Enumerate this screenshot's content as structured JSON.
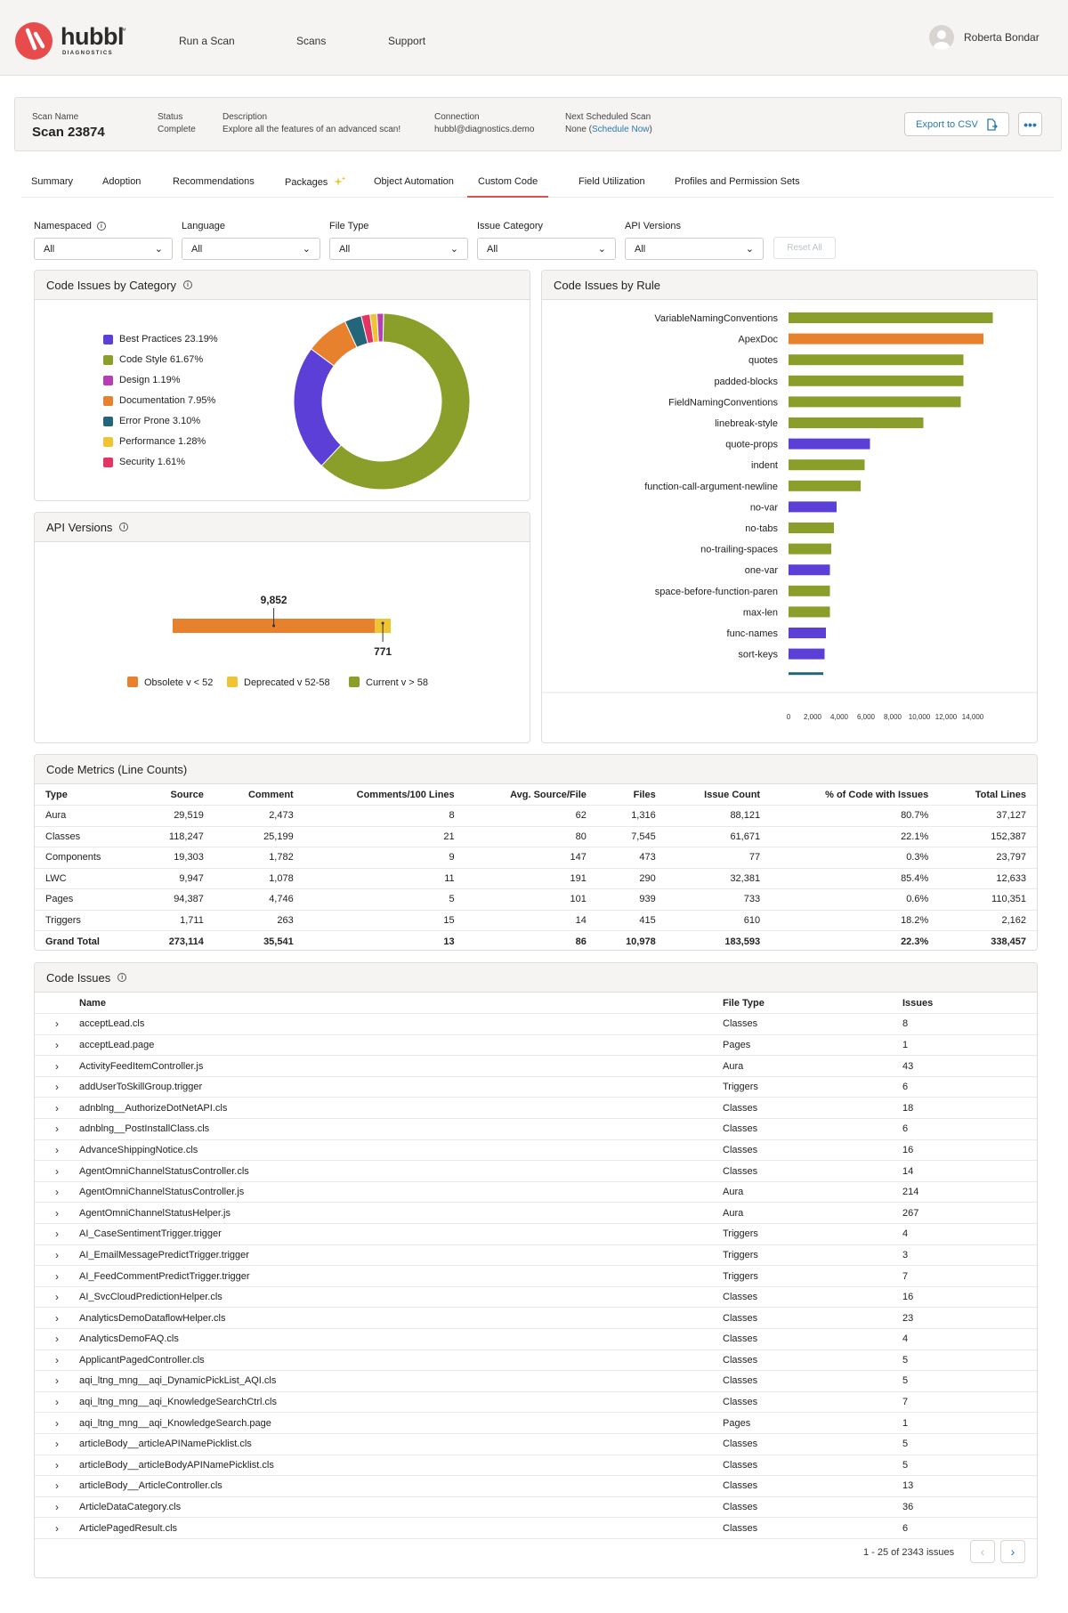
{
  "header": {
    "brand": "hubbl",
    "brand_tm": "™",
    "brand_sub": "DIAGNOSTICS",
    "nav": [
      "Run a Scan",
      "Scans",
      "Support"
    ],
    "user_name": "Roberta Bondar"
  },
  "scan": {
    "name_label": "Scan Name",
    "name": "Scan 23874",
    "status_label": "Status",
    "status": "Complete",
    "description_label": "Description",
    "description": "Explore all the features of an advanced scan!",
    "connection_label": "Connection",
    "connection": "hubbl@diagnostics.demo",
    "next_label": "Next Scheduled Scan",
    "next_none": "None (",
    "next_link": "Schedule Now",
    "next_close": ")",
    "export_label": "Export to CSV",
    "more_label": "•••"
  },
  "tabs": [
    "Summary",
    "Adoption",
    "Recommendations",
    "Packages",
    "Object Automation",
    "Custom Code",
    "Field Utilization",
    "Profiles and Permission Sets"
  ],
  "active_tab": "Custom Code",
  "filters": [
    {
      "label": "Namespaced",
      "value": "All"
    },
    {
      "label": "Language",
      "value": "All"
    },
    {
      "label": "File Type",
      "value": "All"
    },
    {
      "label": "Issue Category",
      "value": "All"
    },
    {
      "label": "API Versions",
      "value": "All"
    }
  ],
  "reset_label": "Reset All",
  "colors": {
    "best_practices": "#5b3fd6",
    "code_style": "#8a9e2a",
    "design": "#b43fb3",
    "documentation": "#e8812e",
    "error_prone": "#23667a",
    "performance": "#efc331",
    "security": "#e33463",
    "obsolete": "#e8812e",
    "deprecated": "#efc331",
    "current": "#8a9e2a"
  },
  "category_panel": {
    "title": "Code Issues by Category"
  },
  "api_panel": {
    "title": "API Versions"
  },
  "rule_panel": {
    "title": "Code Issues by Rule"
  },
  "chart_data": [
    {
      "type": "pie",
      "title": "Code Issues by Category",
      "labels": [
        "Best Practices 23.19%",
        "Code Style 61.67%",
        "Design 1.19%",
        "Documentation 7.95%",
        "Error Prone 3.10%",
        "Performance 1.28%",
        "Security 1.61%"
      ],
      "categories": [
        "Best Practices",
        "Code Style",
        "Design",
        "Documentation",
        "Error Prone",
        "Performance",
        "Security"
      ],
      "values": [
        23.19,
        61.67,
        1.19,
        7.95,
        3.1,
        1.28,
        1.61
      ],
      "color_keys": [
        "best_practices",
        "code_style",
        "design",
        "documentation",
        "error_prone",
        "performance",
        "security"
      ],
      "slice_order": [
        "Code Style",
        "Best Practices",
        "Documentation",
        "Error Prone",
        "Security",
        "Performance",
        "Design"
      ]
    },
    {
      "type": "bar",
      "title": "API Versions",
      "orientation": "horizontal-stacked",
      "series": [
        {
          "name": "Obsolete v < 52",
          "value": 9852,
          "label": "9,852",
          "color_key": "obsolete"
        },
        {
          "name": "Deprecated v 52-58",
          "value": 771,
          "label": "771",
          "color_key": "deprecated"
        },
        {
          "name": "Current v > 58",
          "value": 0,
          "color_key": "current"
        }
      ]
    },
    {
      "type": "bar",
      "title": "Code Issues by Rule",
      "orientation": "horizontal",
      "categories": [
        "VariableNamingConventions",
        "ApexDoc",
        "quotes",
        "padded-blocks",
        "FieldNamingConventions",
        "linebreak-style",
        "quote-props",
        "indent",
        "function-call-argument-newline",
        "no-var",
        "no-tabs",
        "no-trailing-spaces",
        "one-var",
        "space-before-function-paren",
        "max-len",
        "func-names",
        "sort-keys",
        ""
      ],
      "values": [
        15300,
        14600,
        13100,
        13100,
        12900,
        10100,
        6100,
        5700,
        5400,
        3600,
        3400,
        3200,
        3100,
        3100,
        3100,
        2800,
        2700,
        2600
      ],
      "color_keys": [
        "code_style",
        "documentation",
        "code_style",
        "code_style",
        "code_style",
        "code_style",
        "best_practices",
        "code_style",
        "code_style",
        "best_practices",
        "code_style",
        "code_style",
        "best_practices",
        "code_style",
        "code_style",
        "best_practices",
        "best_practices",
        "error_prone"
      ],
      "xticks": [
        "0",
        "2,000",
        "4,000",
        "6,000",
        "8,000",
        "10,000",
        "12,000",
        "14,000"
      ],
      "xlim": [
        0,
        15600
      ]
    }
  ],
  "metrics": {
    "title": "Code Metrics (Line Counts)",
    "columns": [
      "Type",
      "Source",
      "Comment",
      "Comments/100 Lines",
      "Avg. Source/File",
      "Files",
      "Issue Count",
      "% of Code with Issues",
      "Total Lines"
    ],
    "rows": [
      [
        "Aura",
        "29,519",
        "2,473",
        "8",
        "62",
        "1,316",
        "88,121",
        "80.7%",
        "37,127"
      ],
      [
        "Classes",
        "118,247",
        "25,199",
        "21",
        "80",
        "7,545",
        "61,671",
        "22.1%",
        "152,387"
      ],
      [
        "Components",
        "19,303",
        "1,782",
        "9",
        "147",
        "473",
        "77",
        "0.3%",
        "23,797"
      ],
      [
        "LWC",
        "9,947",
        "1,078",
        "11",
        "191",
        "290",
        "32,381",
        "85.4%",
        "12,633"
      ],
      [
        "Pages",
        "94,387",
        "4,746",
        "5",
        "101",
        "939",
        "733",
        "0.6%",
        "110,351"
      ],
      [
        "Triggers",
        "1,711",
        "263",
        "15",
        "14",
        "415",
        "610",
        "18.2%",
        "2,162"
      ]
    ],
    "total": [
      "Grand Total",
      "273,114",
      "35,541",
      "13",
      "86",
      "10,978",
      "183,593",
      "22.3%",
      "338,457"
    ]
  },
  "issues": {
    "title": "Code Issues",
    "columns": [
      "Name",
      "File Type",
      "Issues"
    ],
    "rows": [
      [
        "acceptLead.cls",
        "Classes",
        "8"
      ],
      [
        "acceptLead.page",
        "Pages",
        "1"
      ],
      [
        "ActivityFeedItemController.js",
        "Aura",
        "43"
      ],
      [
        "addUserToSkillGroup.trigger",
        "Triggers",
        "6"
      ],
      [
        "adnblng__AuthorizeDotNetAPI.cls",
        "Classes",
        "18"
      ],
      [
        "adnblng__PostInstallClass.cls",
        "Classes",
        "6"
      ],
      [
        "AdvanceShippingNotice.cls",
        "Classes",
        "16"
      ],
      [
        "AgentOmniChannelStatusController.cls",
        "Classes",
        "14"
      ],
      [
        "AgentOmniChannelStatusController.js",
        "Aura",
        "214"
      ],
      [
        "AgentOmniChannelStatusHelper.js",
        "Aura",
        "267"
      ],
      [
        "AI_CaseSentimentTrigger.trigger",
        "Triggers",
        "4"
      ],
      [
        "AI_EmailMessagePredictTrigger.trigger",
        "Triggers",
        "3"
      ],
      [
        "AI_FeedCommentPredictTrigger.trigger",
        "Triggers",
        "7"
      ],
      [
        "AI_SvcCloudPredictionHelper.cls",
        "Classes",
        "16"
      ],
      [
        "AnalyticsDemoDataflowHelper.cls",
        "Classes",
        "23"
      ],
      [
        "AnalyticsDemoFAQ.cls",
        "Classes",
        "4"
      ],
      [
        "ApplicantPagedController.cls",
        "Classes",
        "5"
      ],
      [
        "aqi_ltng_mng__aqi_DynamicPickList_AQI.cls",
        "Classes",
        "5"
      ],
      [
        "aqi_ltng_mng__aqi_KnowledgeSearchCtrl.cls",
        "Classes",
        "7"
      ],
      [
        "aqi_ltng_mng__aqi_KnowledgeSearch.page",
        "Pages",
        "1"
      ],
      [
        "articleBody__articleAPINamePicklist.cls",
        "Classes",
        "5"
      ],
      [
        "articleBody__articleBodyAPINamePicklist.cls",
        "Classes",
        "5"
      ],
      [
        "articleBody__ArticleController.cls",
        "Classes",
        "13"
      ],
      [
        "ArticleDataCategory.cls",
        "Classes",
        "36"
      ],
      [
        "ArticlePagedResult.cls",
        "Classes",
        "6"
      ]
    ],
    "pagination": "1 - 25 of 2343 issues"
  }
}
